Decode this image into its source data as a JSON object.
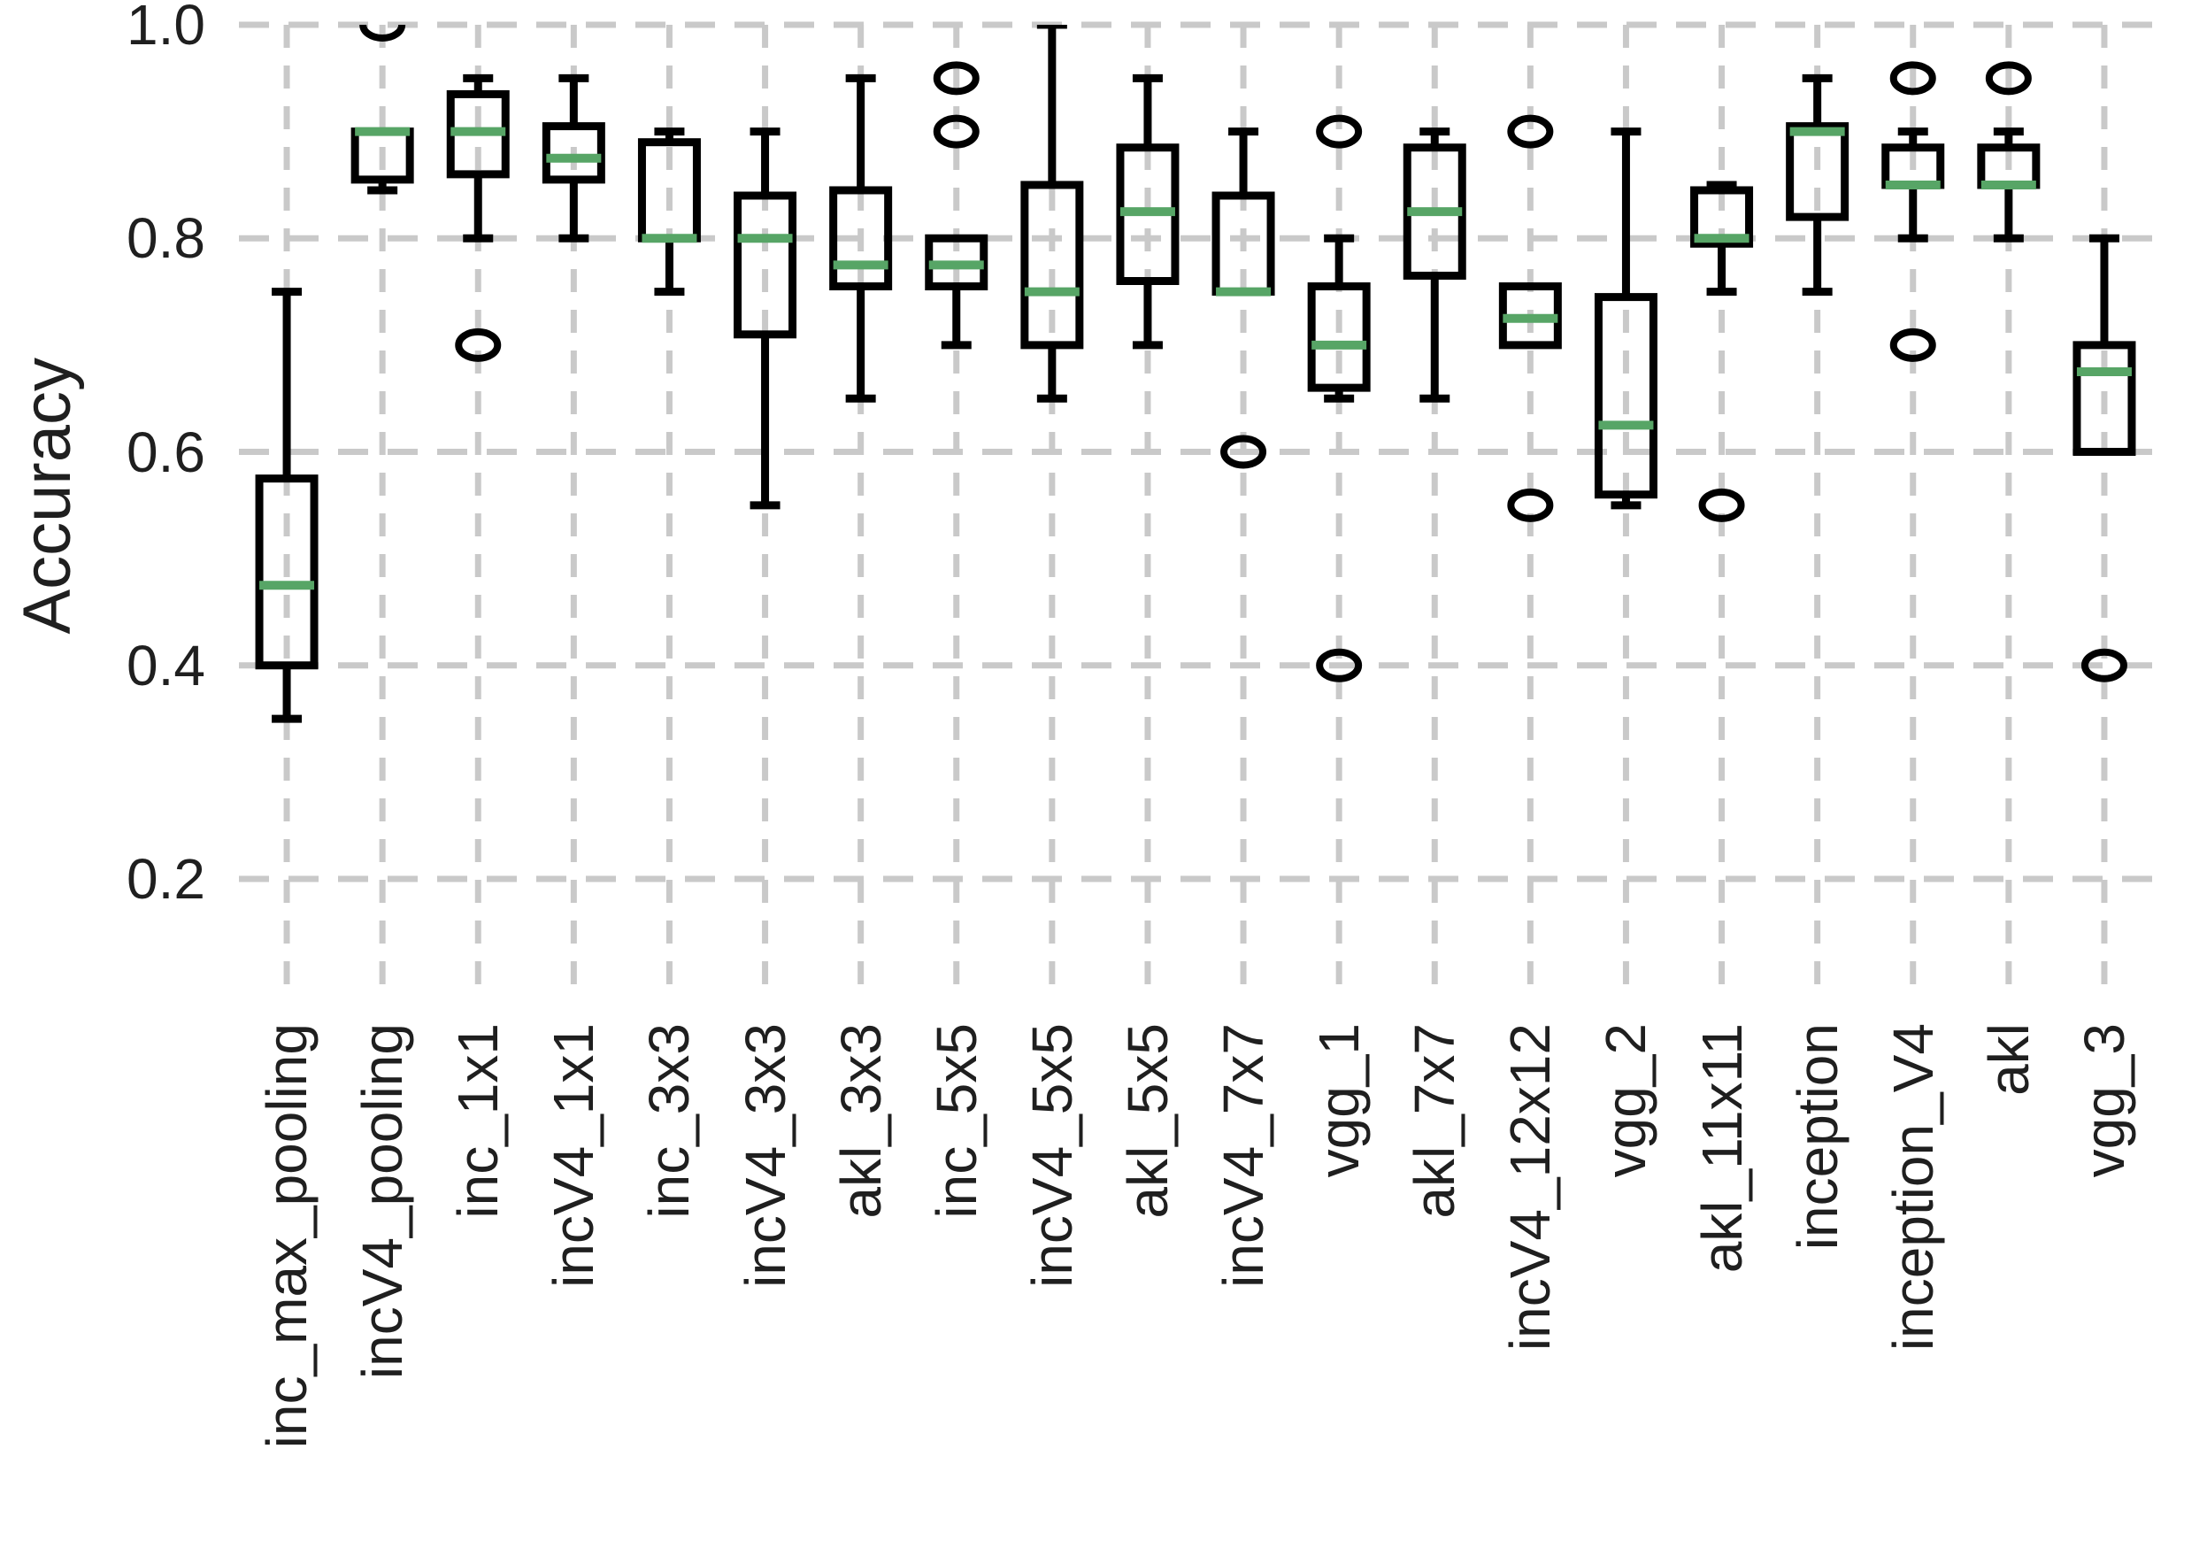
{
  "chart_data": {
    "type": "box",
    "title": "",
    "xlabel": "",
    "ylabel": "Accuracy",
    "ylim": [
      0.09,
      1.0
    ],
    "yticks": [
      1.0,
      0.8,
      0.6,
      0.4,
      0.2
    ],
    "yticklabels": [
      "1.0",
      "0.8",
      "0.6",
      "0.4",
      "0.2"
    ],
    "grid": "dashed-both-axes",
    "legend": "none",
    "colors": {
      "median": "#57a566",
      "box_stroke": "#000000",
      "grid": "#c9c9c9",
      "text": "#1f1f1f",
      "background": "#ffffff"
    },
    "categories": [
      "inc_max_pooling",
      "incV4_pooling",
      "inc_1x1",
      "incV4_1x1",
      "inc_3x3",
      "incV4_3x3",
      "akl_3x3",
      "inc_5x5",
      "incV4_5x5",
      "akl_5x5",
      "incV4_7x7",
      "vgg_1",
      "akl_7x7",
      "incV4_12x12",
      "vgg_2",
      "akl_11x11",
      "inception",
      "inception_V4",
      "akl",
      "vgg_3"
    ],
    "series": [
      {
        "name": "inc_max_pooling",
        "whislo": 0.35,
        "q1": 0.4,
        "med": 0.475,
        "q3": 0.575,
        "whishi": 0.75,
        "fliers": []
      },
      {
        "name": "incV4_pooling",
        "whislo": 0.845,
        "q1": 0.855,
        "med": 0.9,
        "q3": 0.9,
        "whishi": 0.9,
        "fliers": [
          1.0
        ]
      },
      {
        "name": "inc_1x1",
        "whislo": 0.8,
        "q1": 0.86,
        "med": 0.9,
        "q3": 0.935,
        "whishi": 0.95,
        "fliers": [
          0.7
        ]
      },
      {
        "name": "incV4_1x1",
        "whislo": 0.8,
        "q1": 0.855,
        "med": 0.875,
        "q3": 0.905,
        "whishi": 0.95,
        "fliers": []
      },
      {
        "name": "inc_3x3",
        "whislo": 0.75,
        "q1": 0.8,
        "med": 0.8,
        "q3": 0.89,
        "whishi": 0.9,
        "fliers": []
      },
      {
        "name": "incV4_3x3",
        "whislo": 0.55,
        "q1": 0.71,
        "med": 0.8,
        "q3": 0.84,
        "whishi": 0.9,
        "fliers": []
      },
      {
        "name": "akl_3x3",
        "whislo": 0.65,
        "q1": 0.755,
        "med": 0.775,
        "q3": 0.845,
        "whishi": 0.95,
        "fliers": []
      },
      {
        "name": "inc_5x5",
        "whislo": 0.7,
        "q1": 0.755,
        "med": 0.775,
        "q3": 0.8,
        "whishi": 0.8,
        "fliers": [
          0.9,
          0.95
        ]
      },
      {
        "name": "incV4_5x5",
        "whislo": 0.65,
        "q1": 0.7,
        "med": 0.75,
        "q3": 0.85,
        "whishi": 1.0,
        "fliers": []
      },
      {
        "name": "akl_5x5",
        "whislo": 0.7,
        "q1": 0.76,
        "med": 0.825,
        "q3": 0.885,
        "whishi": 0.95,
        "fliers": []
      },
      {
        "name": "incV4_7x7",
        "whislo": 0.75,
        "q1": 0.75,
        "med": 0.75,
        "q3": 0.84,
        "whishi": 0.9,
        "fliers": [
          0.6
        ]
      },
      {
        "name": "vgg_1",
        "whislo": 0.65,
        "q1": 0.66,
        "med": 0.7,
        "q3": 0.755,
        "whishi": 0.8,
        "fliers": [
          0.9,
          0.4
        ]
      },
      {
        "name": "akl_7x7",
        "whislo": 0.65,
        "q1": 0.765,
        "med": 0.825,
        "q3": 0.885,
        "whishi": 0.9,
        "fliers": []
      },
      {
        "name": "incV4_12x12",
        "whislo": 0.7,
        "q1": 0.7,
        "med": 0.725,
        "q3": 0.755,
        "whishi": 0.755,
        "fliers": [
          0.9,
          0.55
        ]
      },
      {
        "name": "vgg_2",
        "whislo": 0.55,
        "q1": 0.56,
        "med": 0.625,
        "q3": 0.745,
        "whishi": 0.9,
        "fliers": []
      },
      {
        "name": "akl_11x11",
        "whislo": 0.75,
        "q1": 0.795,
        "med": 0.8,
        "q3": 0.845,
        "whishi": 0.85,
        "fliers": [
          0.55
        ]
      },
      {
        "name": "inception",
        "whislo": 0.75,
        "q1": 0.82,
        "med": 0.9,
        "q3": 0.905,
        "whishi": 0.95,
        "fliers": []
      },
      {
        "name": "inception_V4",
        "whislo": 0.8,
        "q1": 0.85,
        "med": 0.85,
        "q3": 0.885,
        "whishi": 0.9,
        "fliers": [
          0.95,
          0.7
        ]
      },
      {
        "name": "akl",
        "whislo": 0.8,
        "q1": 0.85,
        "med": 0.85,
        "q3": 0.885,
        "whishi": 0.9,
        "fliers": [
          0.95
        ]
      },
      {
        "name": "vgg_3",
        "whislo": 0.6,
        "q1": 0.6,
        "med": 0.675,
        "q3": 0.7,
        "whishi": 0.8,
        "fliers": [
          0.4
        ]
      }
    ]
  }
}
